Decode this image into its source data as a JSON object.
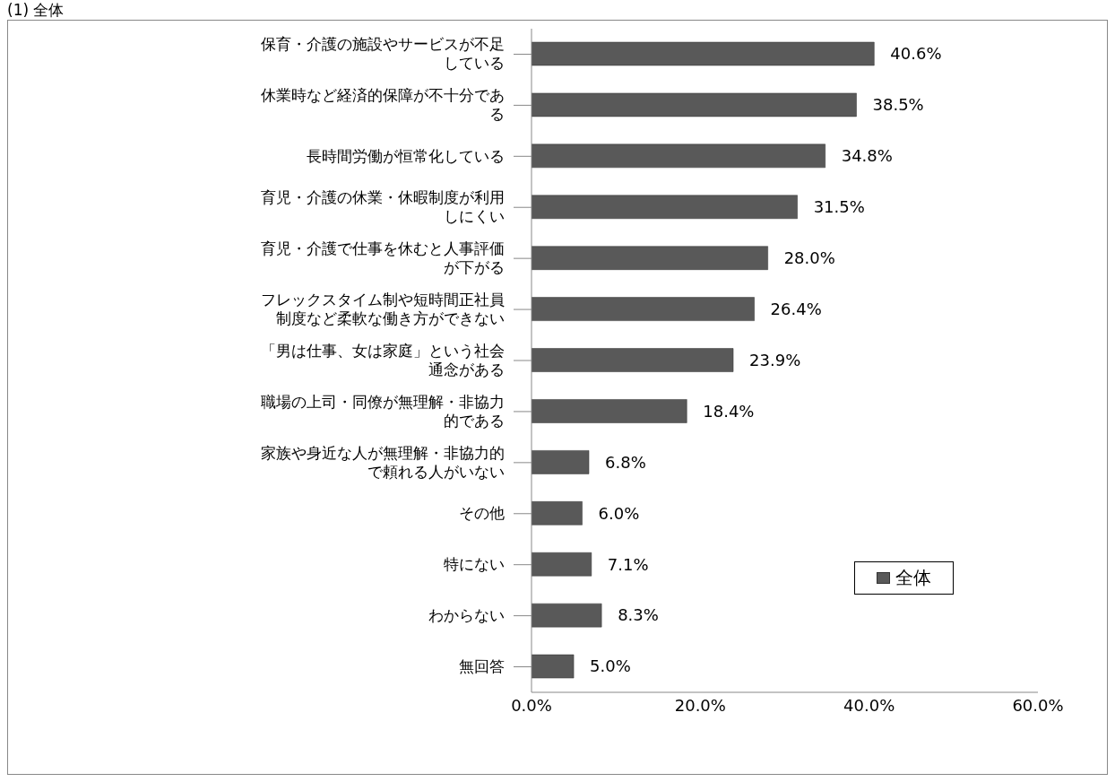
{
  "chart_data": {
    "type": "bar",
    "orientation": "horizontal",
    "title": "(1) 全体",
    "categories": [
      "保育・介護の施設やサービスが不足している",
      "休業時など経済的保障が不十分である",
      "長時間労働が恒常化している",
      "育児・介護の休業・休暇制度が利用しにくい",
      "育児・介護で仕事を休むと人事評価が下がる",
      "フレックスタイム制や短時間正社員制度など柔軟な働き方ができない",
      "「男は仕事、女は家庭」という社会通念がある",
      "職場の上司・同僚が無理解・非協力的である",
      "家族や身近な人が無理解・非協力的で頼れる人がいない",
      "その他",
      "特にない",
      "わからない",
      "無回答"
    ],
    "series": [
      {
        "name": "全体",
        "color": "#595959",
        "values": [
          40.6,
          38.5,
          34.8,
          31.5,
          28.0,
          26.4,
          23.9,
          18.4,
          6.8,
          6.0,
          7.1,
          8.3,
          5.0
        ],
        "value_labels": [
          "40.6%",
          "38.5%",
          "34.8%",
          "31.5%",
          "28.0%",
          "26.4%",
          "23.9%",
          "18.4%",
          "6.8%",
          "6.0%",
          "7.1%",
          "8.3%",
          "5.0%"
        ]
      }
    ],
    "xlim": [
      0,
      60
    ],
    "xticks": [
      {
        "value": 0,
        "label": "0.0%"
      },
      {
        "value": 20,
        "label": "20.0%"
      },
      {
        "value": 40,
        "label": "40.0%"
      },
      {
        "value": 60,
        "label": "60.0%"
      }
    ],
    "grid": false,
    "legend": "bottom right"
  }
}
